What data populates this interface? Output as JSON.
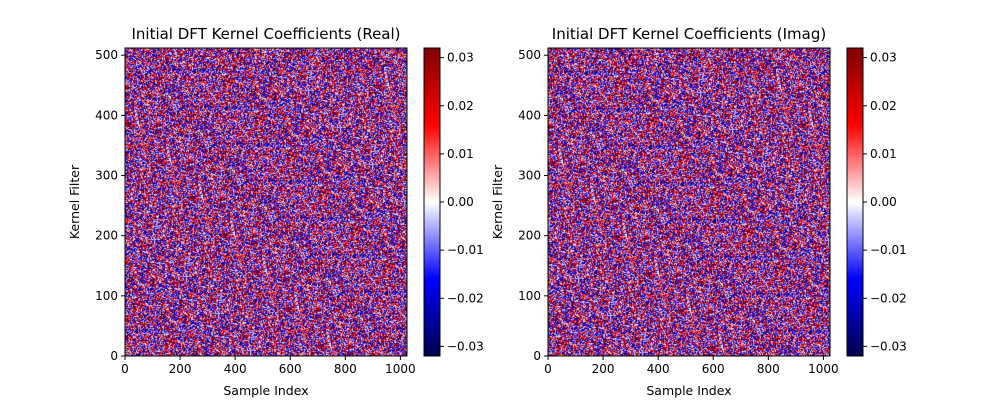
{
  "chart_data": [
    {
      "type": "heatmap",
      "title": "Initial DFT Kernel Coefficients (Real)",
      "xlabel": "Sample Index",
      "ylabel": "Kernel Filter",
      "xlim": [
        0,
        1024
      ],
      "ylim": [
        0,
        512
      ],
      "xticks": [
        0,
        200,
        400,
        600,
        800,
        1000
      ],
      "yticks": [
        0,
        100,
        200,
        300,
        400,
        500
      ],
      "colormap": "seismic",
      "colorbar": {
        "range": [
          -0.032,
          0.032
        ],
        "ticks": [
          -0.03,
          -0.02,
          -0.01,
          0.0,
          0.01,
          0.02,
          0.03
        ],
        "tick_labels": [
          "−0.03",
          "−0.02",
          "−0.01",
          "0.00",
          "0.01",
          "0.02",
          "0.03"
        ]
      },
      "values": "random noise, approximately uniform in [-0.032, 0.032]",
      "grid": false
    },
    {
      "type": "heatmap",
      "title": "Initial DFT Kernel Coefficients (Imag)",
      "xlabel": "Sample Index",
      "ylabel": "Kernel Filter",
      "xlim": [
        0,
        1024
      ],
      "ylim": [
        0,
        512
      ],
      "xticks": [
        0,
        200,
        400,
        600,
        800,
        1000
      ],
      "yticks": [
        0,
        100,
        200,
        300,
        400,
        500
      ],
      "colormap": "seismic",
      "colorbar": {
        "range": [
          -0.032,
          0.032
        ],
        "ticks": [
          -0.03,
          -0.02,
          -0.01,
          0.0,
          0.01,
          0.02,
          0.03
        ],
        "tick_labels": [
          "−0.03",
          "−0.02",
          "−0.01",
          "0.00",
          "0.01",
          "0.02",
          "0.03"
        ]
      },
      "values": "random noise, approximately uniform in [-0.032, 0.032]",
      "grid": false
    }
  ],
  "colors": {
    "colormap_stops": [
      "#00004c",
      "#0000ff",
      "#ffffff",
      "#ff0000",
      "#7f0000"
    ]
  }
}
